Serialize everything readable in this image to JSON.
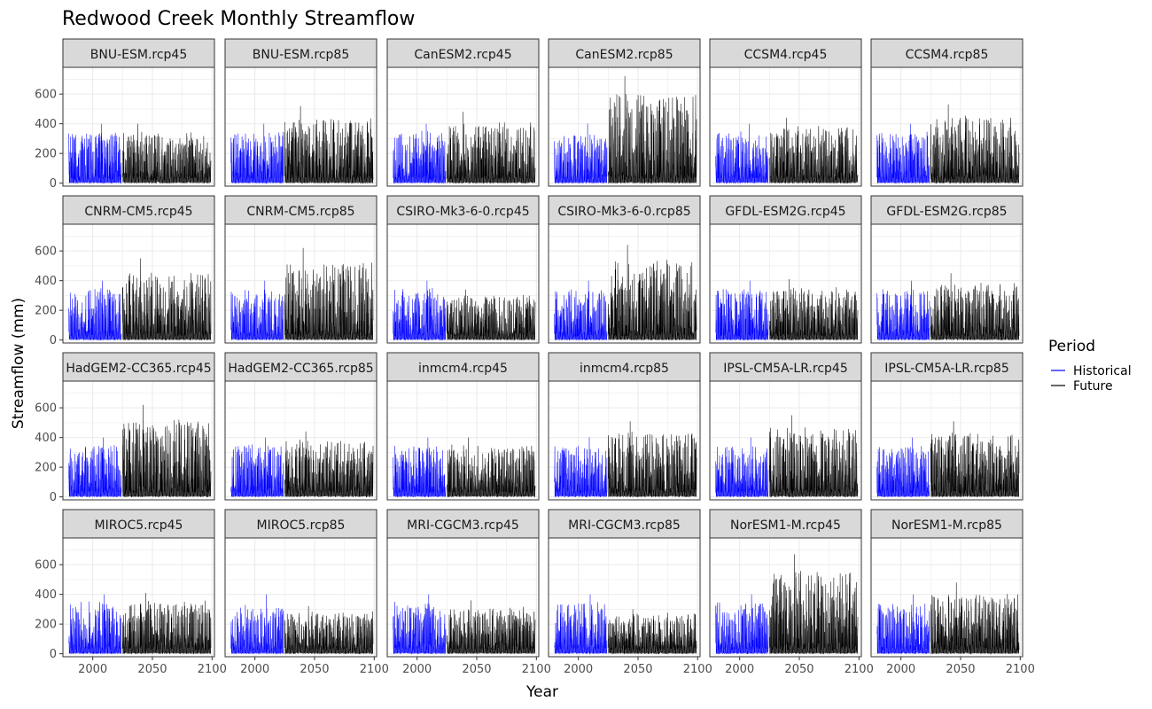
{
  "chart_data": {
    "type": "line",
    "title": "Redwood Creek Monthly Streamflow",
    "xlabel": "Year",
    "ylabel": "Streamflow (mm)",
    "xlim": [
      1975,
      2102
    ],
    "ylim": [
      -20,
      780
    ],
    "x_ticks": [
      2000,
      2050,
      2100
    ],
    "y_ticks": [
      0,
      200,
      400,
      600
    ],
    "grid": true,
    "facet_layout": {
      "rows": 4,
      "cols": 6
    },
    "legend": {
      "title": "Period",
      "placement": "right",
      "entries": [
        {
          "name": "Historical",
          "color": "#0000ff"
        },
        {
          "name": "Future",
          "color": "#000000"
        }
      ]
    },
    "series_x_ranges": {
      "Historical": [
        1980,
        2024
      ],
      "Future": [
        2025,
        2099
      ]
    },
    "panels": [
      {
        "label": "BNU-ESM.rcp45",
        "historical_peak": 400,
        "future_peak": 400
      },
      {
        "label": "BNU-ESM.rcp85",
        "historical_peak": 400,
        "future_peak": 520
      },
      {
        "label": "CanESM2.rcp45",
        "historical_peak": 400,
        "future_peak": 480
      },
      {
        "label": "CanESM2.rcp85",
        "historical_peak": 400,
        "future_peak": 720
      },
      {
        "label": "CCSM4.rcp45",
        "historical_peak": 400,
        "future_peak": 440
      },
      {
        "label": "CCSM4.rcp85",
        "historical_peak": 400,
        "future_peak": 530
      },
      {
        "label": "CNRM-CM5.rcp45",
        "historical_peak": 400,
        "future_peak": 550
      },
      {
        "label": "CNRM-CM5.rcp85",
        "historical_peak": 400,
        "future_peak": 620
      },
      {
        "label": "CSIRO-Mk3-6-0.rcp45",
        "historical_peak": 400,
        "future_peak": 340
      },
      {
        "label": "CSIRO-Mk3-6-0.rcp85",
        "historical_peak": 400,
        "future_peak": 640
      },
      {
        "label": "GFDL-ESM2G.rcp45",
        "historical_peak": 400,
        "future_peak": 410
      },
      {
        "label": "GFDL-ESM2G.rcp85",
        "historical_peak": 400,
        "future_peak": 450
      },
      {
        "label": "HadGEM2-CC365.rcp45",
        "historical_peak": 400,
        "future_peak": 620
      },
      {
        "label": "HadGEM2-CC365.rcp85",
        "historical_peak": 400,
        "future_peak": 440
      },
      {
        "label": "inmcm4.rcp45",
        "historical_peak": 400,
        "future_peak": 400
      },
      {
        "label": "inmcm4.rcp85",
        "historical_peak": 400,
        "future_peak": 510
      },
      {
        "label": "IPSL-CM5A-LR.rcp45",
        "historical_peak": 400,
        "future_peak": 550
      },
      {
        "label": "IPSL-CM5A-LR.rcp85",
        "historical_peak": 400,
        "future_peak": 510
      },
      {
        "label": "MIROC5.rcp45",
        "historical_peak": 400,
        "future_peak": 410
      },
      {
        "label": "MIROC5.rcp85",
        "historical_peak": 400,
        "future_peak": 320
      },
      {
        "label": "MRI-CGCM3.rcp45",
        "historical_peak": 400,
        "future_peak": 360
      },
      {
        "label": "MRI-CGCM3.rcp85",
        "historical_peak": 400,
        "future_peak": 300
      },
      {
        "label": "NorESM1-M.rcp45",
        "historical_peak": 400,
        "future_peak": 670
      },
      {
        "label": "NorESM1-M.rcp85",
        "historical_peak": 400,
        "future_peak": 480
      }
    ]
  }
}
